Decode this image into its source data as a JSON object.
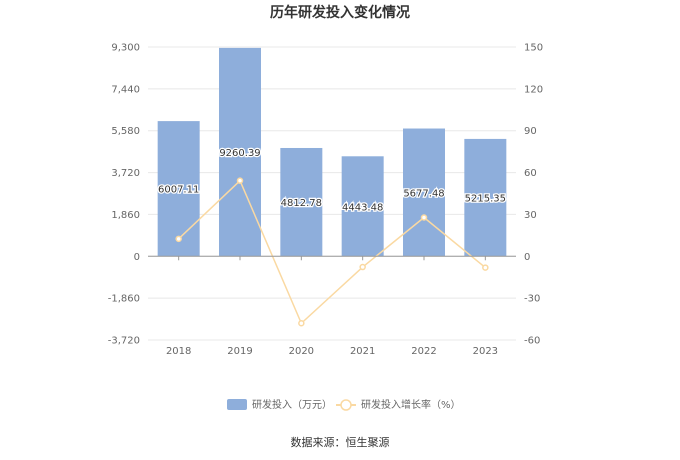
{
  "chart_data": {
    "type": "bar",
    "title": "历年研发投入变化情况",
    "categories": [
      "2018",
      "2019",
      "2020",
      "2021",
      "2022",
      "2023"
    ],
    "series": [
      {
        "name": "研发投入（万元）",
        "type": "bar",
        "axis": "left",
        "color": "#8eaedb",
        "values": [
          6007.11,
          9260.39,
          4812.78,
          4443.48,
          5677.48,
          5215.35
        ],
        "labels": [
          "6007.11",
          "9260.39",
          "4812.78",
          "4443.48",
          "5677.48",
          "5215.35"
        ]
      },
      {
        "name": "研发投入增长率（%）",
        "type": "line",
        "axis": "right",
        "color": "#fad9a2",
        "values": [
          12.5,
          54.2,
          -48.0,
          -7.7,
          27.8,
          -8.1
        ]
      }
    ],
    "y_left": {
      "ylim": [
        -3720,
        9300
      ],
      "ticks": [
        9300,
        7440,
        5580,
        3720,
        1860,
        0,
        -1860,
        -3720
      ],
      "tick_labels": [
        "9,300",
        "7,440",
        "5,580",
        "3,720",
        "1,860",
        "0",
        "-1,860",
        "-3,720"
      ]
    },
    "y_right": {
      "ylim": [
        -60,
        150
      ],
      "ticks": [
        150,
        120,
        90,
        60,
        30,
        0,
        -30,
        -60
      ],
      "tick_labels": [
        "150",
        "120",
        "90",
        "60",
        "30",
        "0",
        "-30",
        "-60"
      ]
    },
    "grid": true,
    "legend_position": "bottom-center"
  },
  "source_text": "数据来源：恒生聚源"
}
